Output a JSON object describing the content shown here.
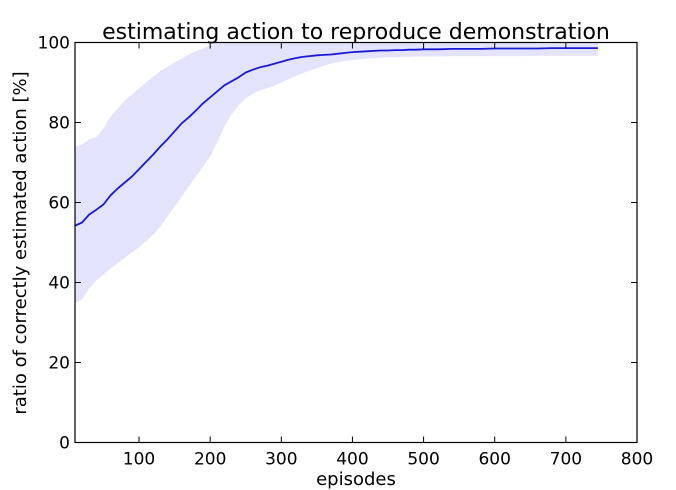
{
  "chart_data": {
    "type": "line",
    "title": "estimating action to reproduce demonstration",
    "xlabel": "episodes",
    "ylabel": "ratio of correctly estimated action [%]",
    "xlim": [
      10,
      800
    ],
    "ylim": [
      0,
      100
    ],
    "xticks": [
      "100",
      "200",
      "300",
      "400",
      "500",
      "600",
      "700",
      "800"
    ],
    "xtick_values": [
      100,
      200,
      300,
      400,
      500,
      600,
      700,
      800
    ],
    "yticks": [
      "0",
      "20",
      "40",
      "60",
      "80",
      "100"
    ],
    "ytick_values": [
      0,
      20,
      40,
      60,
      80,
      100
    ],
    "grid": false,
    "legend": "none",
    "line_color": "#1a1ad6",
    "band_color": "#e3e3fb",
    "series": [
      {
        "x": [
          10,
          20,
          30,
          40,
          50,
          60,
          70,
          80,
          90,
          100,
          110,
          120,
          130,
          140,
          150,
          160,
          170,
          180,
          190,
          200,
          210,
          220,
          230,
          240,
          250,
          260,
          270,
          280,
          290,
          300,
          310,
          320,
          330,
          340,
          350,
          360,
          370,
          380,
          390,
          400,
          410,
          420,
          430,
          440,
          450,
          460,
          470,
          480,
          490,
          500,
          520,
          540,
          560,
          580,
          600,
          620,
          640,
          660,
          680,
          700,
          720,
          745
        ],
        "y": [
          54.2,
          55.0,
          57.0,
          58.2,
          59.5,
          61.8,
          63.5,
          65.0,
          66.5,
          68.3,
          70.2,
          72.0,
          74.0,
          75.8,
          77.8,
          79.8,
          81.3,
          83.0,
          84.8,
          86.3,
          87.8,
          89.3,
          90.3,
          91.3,
          92.5,
          93.2,
          93.8,
          94.2,
          94.7,
          95.2,
          95.7,
          96.1,
          96.4,
          96.6,
          96.8,
          96.9,
          97.0,
          97.2,
          97.4,
          97.6,
          97.7,
          97.8,
          97.9,
          98.0,
          98.0,
          98.1,
          98.1,
          98.2,
          98.2,
          98.3,
          98.3,
          98.4,
          98.4,
          98.4,
          98.5,
          98.5,
          98.5,
          98.5,
          98.6,
          98.6,
          98.6,
          98.6
        ],
        "upper": [
          74.0,
          74.5,
          75.8,
          76.3,
          78.5,
          81.5,
          83.5,
          85.5,
          87.0,
          88.5,
          90.0,
          91.5,
          92.8,
          94.0,
          95.0,
          96.0,
          97.0,
          97.8,
          98.5,
          99.3,
          100.0,
          100.0,
          100.0,
          100.0,
          100.0,
          100.0,
          100.0,
          100.0,
          100.0,
          100.0,
          100.0,
          100.0,
          100.0,
          100.0,
          100.0,
          100.0,
          100.0,
          100.0,
          100.0,
          100.0,
          100.0,
          100.0,
          100.0,
          100.0,
          100.0,
          100.0,
          100.0,
          100.0,
          100.0,
          100.0,
          100.0,
          100.0,
          100.0,
          100.0,
          100.0,
          100.0,
          100.0,
          100.0,
          100.0,
          100.0,
          100.0,
          100.0
        ],
        "lower": [
          34.8,
          35.8,
          38.5,
          40.5,
          42.0,
          43.5,
          44.8,
          46.2,
          47.5,
          48.8,
          50.3,
          52.0,
          54.0,
          56.5,
          59.0,
          61.5,
          64.0,
          66.5,
          69.0,
          71.5,
          75.0,
          79.0,
          82.0,
          84.3,
          86.0,
          87.2,
          88.0,
          88.6,
          89.2,
          90.0,
          90.8,
          91.6,
          92.3,
          93.0,
          93.6,
          94.2,
          94.7,
          95.1,
          95.4,
          95.6,
          95.8,
          96.0,
          96.1,
          96.2,
          96.3,
          96.3,
          96.4,
          96.4,
          96.5,
          96.5,
          96.5,
          96.6,
          96.6,
          96.6,
          96.6,
          96.6,
          96.6,
          96.7,
          96.7,
          96.7,
          96.7,
          96.7
        ]
      }
    ]
  }
}
